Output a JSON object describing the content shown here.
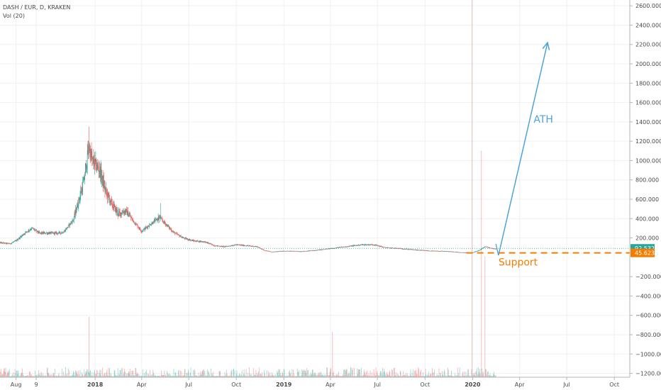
{
  "header": {
    "symbol_line": "DASH / EUR, D, KRAKEN",
    "indicator_line": "Vol (20)"
  },
  "colors": {
    "up": "#26a69a",
    "down": "#ef5350",
    "arrow": "#4ea3d8",
    "support": "#f57c00",
    "price_line": "#26a69a",
    "grid": "#eef0f3"
  },
  "price_badges": [
    {
      "label": "92.532",
      "value": 92.532,
      "color": "#26a69a"
    },
    {
      "label": "45.623",
      "value": 45.623,
      "color": "#f57c00"
    }
  ],
  "annotations": {
    "ath_label": "ATH",
    "support_label": "Support",
    "support_level": 45.623,
    "ath_arrow": {
      "from": [
        "2020-02-20",
        20
      ],
      "to": [
        "2020-05-25",
        2220
      ]
    }
  },
  "chart_data": {
    "type": "candlestick",
    "title": "DASH / EUR, D, KRAKEN",
    "xlabel": "",
    "ylabel": "",
    "ylim": [
      -1240,
      2660
    ],
    "xlim": [
      "2017-07-01",
      "2020-10-31"
    ],
    "y_ticks": [
      2600,
      2400,
      2200,
      2000,
      1800,
      1600,
      1400,
      1200,
      1000,
      800,
      600,
      400,
      200,
      -200,
      -400,
      -600,
      -800,
      -1000,
      -1200
    ],
    "y_tick_labels": [
      "2600.000",
      "2400.000",
      "2200.000",
      "2000.000",
      "1800.000",
      "1600.000",
      "1400.000",
      "1200.000",
      "1000.000",
      "800.000",
      "600.000",
      "400.000",
      "200.000",
      "−200.000",
      "−400.000",
      "−600.000",
      "−800.000",
      "−1000.000",
      "−1200.000"
    ],
    "x_ticks": [
      {
        "label": "Aug",
        "date": "2017-08-01"
      },
      {
        "label": "9",
        "date": "2017-09-09"
      },
      {
        "label": "2018",
        "date": "2018-01-01"
      },
      {
        "label": "Apr",
        "date": "2018-04-01"
      },
      {
        "label": "Jul",
        "date": "2018-07-01"
      },
      {
        "label": "Oct",
        "date": "2018-10-01"
      },
      {
        "label": "2019",
        "date": "2019-01-01"
      },
      {
        "label": "Apr",
        "date": "2019-04-01"
      },
      {
        "label": "Jul",
        "date": "2019-07-01"
      },
      {
        "label": "Oct",
        "date": "2019-10-01"
      },
      {
        "label": "2020",
        "date": "2020-01-01"
      },
      {
        "label": "Apr",
        "date": "2020-04-01"
      },
      {
        "label": "Jul",
        "date": "2020-07-01"
      },
      {
        "label": "Oct",
        "date": "2020-10-01"
      }
    ],
    "price_path": [
      [
        "2017-07-01",
        150
      ],
      [
        "2017-07-20",
        140
      ],
      [
        "2017-08-01",
        170
      ],
      [
        "2017-08-20",
        260
      ],
      [
        "2017-09-01",
        300
      ],
      [
        "2017-09-15",
        250
      ],
      [
        "2017-10-01",
        250
      ],
      [
        "2017-10-20",
        250
      ],
      [
        "2017-11-01",
        260
      ],
      [
        "2017-11-20",
        390
      ],
      [
        "2017-12-01",
        600
      ],
      [
        "2017-12-10",
        780
      ],
      [
        "2017-12-20",
        1150
      ],
      [
        "2017-12-26",
        1000
      ],
      [
        "2018-01-10",
        900
      ],
      [
        "2018-01-20",
        700
      ],
      [
        "2018-02-01",
        560
      ],
      [
        "2018-02-15",
        450
      ],
      [
        "2018-03-01",
        480
      ],
      [
        "2018-03-15",
        380
      ],
      [
        "2018-04-01",
        270
      ],
      [
        "2018-04-20",
        350
      ],
      [
        "2018-05-05",
        410
      ],
      [
        "2018-05-20",
        330
      ],
      [
        "2018-06-01",
        260
      ],
      [
        "2018-06-20",
        200
      ],
      [
        "2018-07-10",
        170
      ],
      [
        "2018-08-01",
        160
      ],
      [
        "2018-08-20",
        120
      ],
      [
        "2018-09-10",
        110
      ],
      [
        "2018-10-01",
        130
      ],
      [
        "2018-10-20",
        120
      ],
      [
        "2018-11-10",
        110
      ],
      [
        "2018-11-25",
        70
      ],
      [
        "2018-12-10",
        55
      ],
      [
        "2019-01-01",
        65
      ],
      [
        "2019-02-01",
        60
      ],
      [
        "2019-03-01",
        70
      ],
      [
        "2019-04-01",
        90
      ],
      [
        "2019-05-01",
        110
      ],
      [
        "2019-06-01",
        130
      ],
      [
        "2019-06-25",
        130
      ],
      [
        "2019-07-15",
        100
      ],
      [
        "2019-08-15",
        90
      ],
      [
        "2019-09-15",
        75
      ],
      [
        "2019-10-15",
        65
      ],
      [
        "2019-11-15",
        60
      ],
      [
        "2019-12-15",
        48
      ],
      [
        "2020-01-01",
        47
      ],
      [
        "2020-01-15",
        75
      ],
      [
        "2020-01-25",
        110
      ],
      [
        "2020-02-05",
        95
      ],
      [
        "2020-02-15",
        85
      ]
    ],
    "volume_scale": {
      "bottom_value": -1240,
      "units_per_volume": 520
    },
    "volume_events": [
      {
        "date": "2017-12-20",
        "volume": 1.2
      },
      {
        "date": "2019-04-05",
        "volume": 0.9
      },
      {
        "date": "2019-12-31",
        "volume": 10
      },
      {
        "date": "2020-01-18",
        "volume": 4.5
      },
      {
        "date": "2020-01-25",
        "volume": 2.4
      }
    ]
  }
}
